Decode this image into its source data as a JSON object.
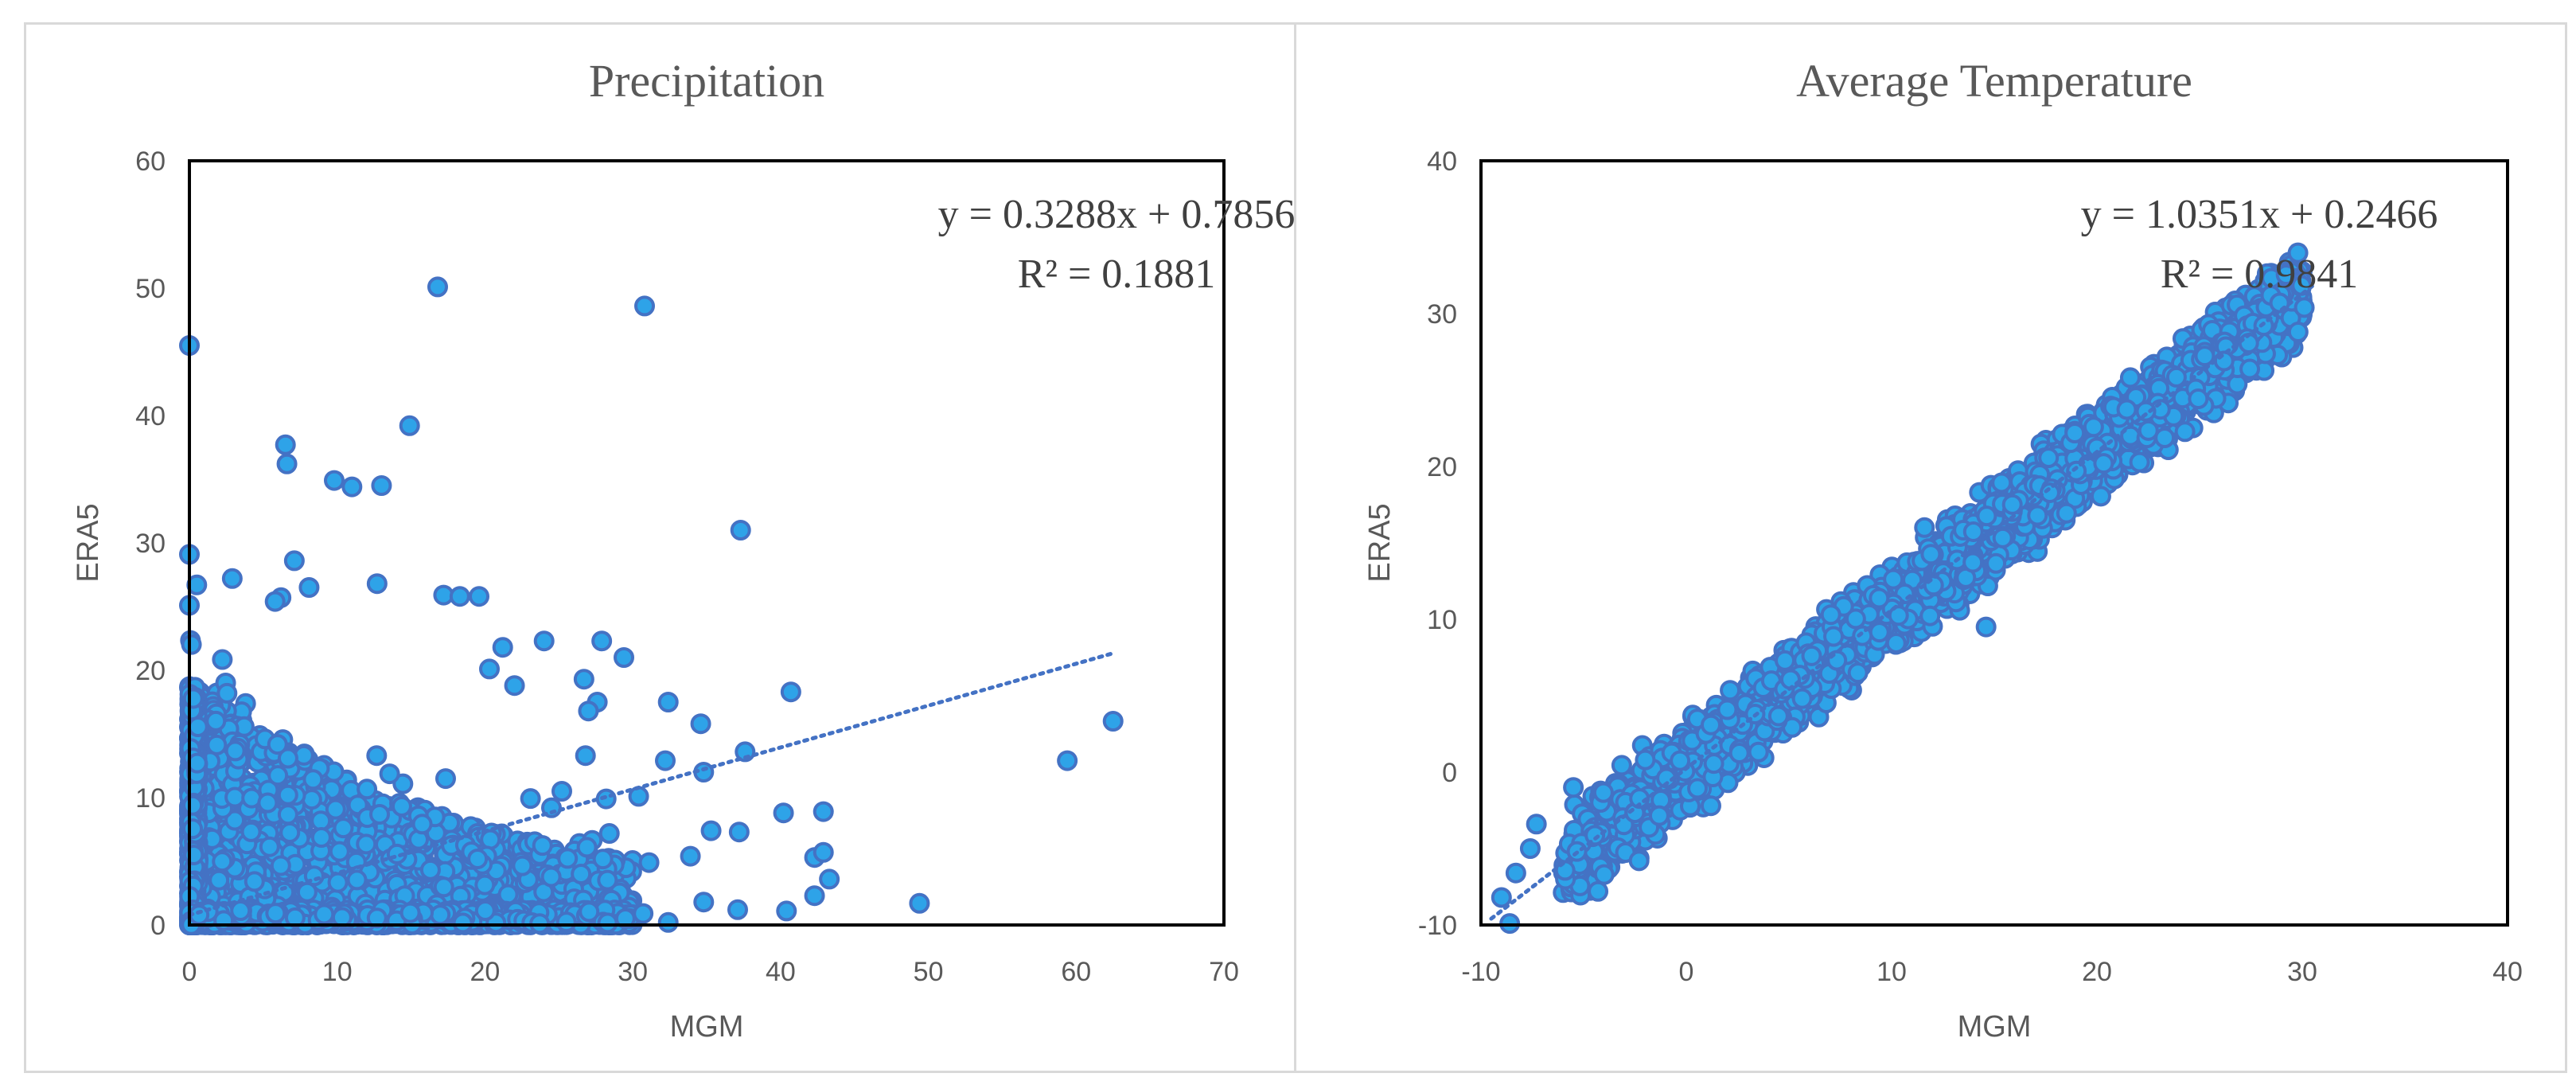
{
  "chart_data": [
    {
      "id": "precip",
      "type": "scatter",
      "title": "Precipitation",
      "xlabel": "MGM",
      "ylabel": "ERA5",
      "xlim": [
        0,
        70
      ],
      "ylim": [
        0,
        60
      ],
      "xticks": [
        0,
        10,
        20,
        30,
        40,
        50,
        60,
        70
      ],
      "yticks": [
        0,
        10,
        20,
        30,
        40,
        50,
        60
      ],
      "tick_labels_x": [
        "0",
        "10",
        "20",
        "30",
        "40",
        "50",
        "60",
        "70"
      ],
      "tick_labels_y": [
        "0",
        "10",
        "20",
        "30",
        "40",
        "50",
        "60"
      ],
      "grid": false,
      "marker_color": "#2ea3e8",
      "marker_edge": "#4472c4",
      "trendline": {
        "slope": 0.3288,
        "intercept": 0.7856,
        "x_range": [
          0,
          62.5
        ],
        "color": "#4472c4",
        "style": "dotted"
      },
      "equation": "y = 0.3288x + 0.7856",
      "r_squared": "R² = 0.1881",
      "highlight_points": [
        [
          0,
          45.5
        ],
        [
          16.8,
          50.1
        ],
        [
          30.8,
          48.6
        ],
        [
          14.9,
          39.2
        ],
        [
          6.5,
          37.7
        ],
        [
          6.6,
          36.2
        ],
        [
          9.8,
          34.9
        ],
        [
          11,
          34.4
        ],
        [
          13,
          34.5
        ],
        [
          37.3,
          31.0
        ],
        [
          0,
          29.1
        ],
        [
          7.1,
          28.6
        ],
        [
          0.5,
          26.7
        ],
        [
          2.9,
          27.2
        ],
        [
          8.1,
          26.5
        ],
        [
          12.7,
          26.8
        ],
        [
          17.2,
          25.9
        ],
        [
          19.6,
          25.8
        ],
        [
          18.3,
          25.8
        ],
        [
          6.2,
          25.7
        ],
        [
          5.8,
          25.4
        ],
        [
          0,
          25.1
        ],
        [
          24,
          22.3
        ],
        [
          27.9,
          22.3
        ],
        [
          29.4,
          21.0
        ],
        [
          40.7,
          18.3
        ],
        [
          32.4,
          17.5
        ],
        [
          34.6,
          15.8
        ],
        [
          37.6,
          13.6
        ],
        [
          32.2,
          12.9
        ],
        [
          59.4,
          12.9
        ],
        [
          62.5,
          16.0
        ],
        [
          34.8,
          12.0
        ],
        [
          40.2,
          8.8
        ],
        [
          42.9,
          8.9
        ],
        [
          35.3,
          7.4
        ],
        [
          37.2,
          7.3
        ],
        [
          33.9,
          5.4
        ],
        [
          42.3,
          5.3
        ],
        [
          42.9,
          5.7
        ],
        [
          43.3,
          3.6
        ],
        [
          42.3,
          2.3
        ],
        [
          40.4,
          1.1
        ],
        [
          37.1,
          1.2
        ],
        [
          34.8,
          1.8
        ],
        [
          49.4,
          1.7
        ],
        [
          30.7,
          0.9
        ],
        [
          32.4,
          0.2
        ],
        [
          29.5,
          0.5
        ],
        [
          26.5,
          4.0
        ],
        [
          27.6,
          17.5
        ],
        [
          26.7,
          19.3
        ],
        [
          27.0,
          16.8
        ],
        [
          26.8,
          13.3
        ],
        [
          24.5,
          9.2
        ],
        [
          22.0,
          18.8
        ],
        [
          20.3,
          20.1
        ],
        [
          21.2,
          21.8
        ],
        [
          30.4,
          10.1
        ],
        [
          31.1,
          4.9
        ],
        [
          28.2,
          9.9
        ],
        [
          25.2,
          10.5
        ],
        [
          26.9,
          6.1
        ]
      ]
    },
    {
      "id": "temp",
      "type": "scatter",
      "title": "Average  Temperature",
      "xlabel": "MGM",
      "ylabel": "ERA5",
      "xlim": [
        -10,
        40
      ],
      "ylim": [
        -10,
        40
      ],
      "xticks": [
        -10,
        0,
        10,
        20,
        30,
        40
      ],
      "yticks": [
        -10,
        0,
        10,
        20,
        30,
        40
      ],
      "tick_labels_x": [
        "-10",
        "0",
        "10",
        "20",
        "30",
        "40"
      ],
      "tick_labels_y": [
        "-10",
        "0",
        "10",
        "20",
        "30",
        "40"
      ],
      "grid": false,
      "marker_color": "#2ea3e8",
      "marker_edge": "#4472c4",
      "trendline": {
        "slope": 1.0351,
        "intercept": 0.2466,
        "x_range": [
          -9.5,
          30.5
        ],
        "color": "#4472c4",
        "style": "dotted"
      },
      "equation": "y = 1.0351x + 0.2466",
      "r_squared": "R² = 0.9841",
      "highlight_points": [
        [
          -9.0,
          -8.2
        ],
        [
          -8.6,
          -9.9
        ],
        [
          -8.3,
          -6.6
        ],
        [
          -7.6,
          -5.0
        ],
        [
          -7.3,
          -3.4
        ],
        [
          -4.3,
          -7.8
        ],
        [
          -4.0,
          -6.7
        ],
        [
          -2.3,
          -5.8
        ],
        [
          -5.5,
          -1.0
        ],
        [
          -2.0,
          0.8
        ],
        [
          1.2,
          -2.2
        ],
        [
          11.6,
          16.0
        ],
        [
          14.6,
          9.5
        ],
        [
          28.9,
          30.7
        ],
        [
          30.1,
          30.4
        ],
        [
          29.8,
          28.8
        ]
      ]
    }
  ]
}
